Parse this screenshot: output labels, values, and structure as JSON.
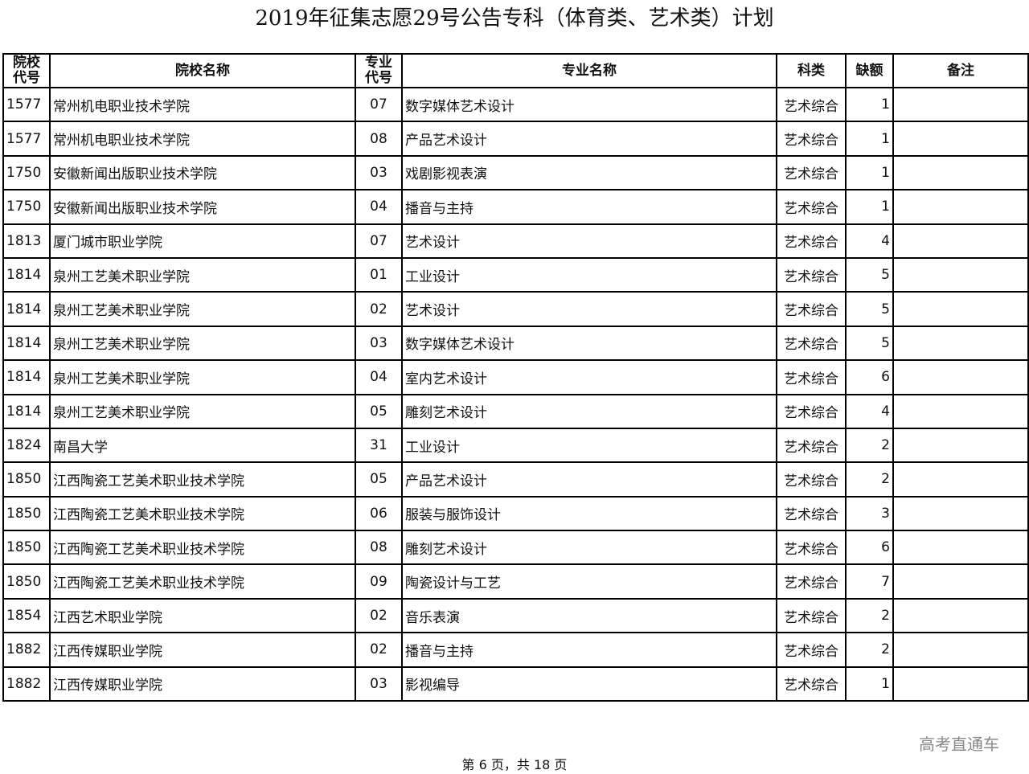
{
  "title": "2019年征集志愿29号公告专科（体育类、艺术类）计划",
  "columns": [
    "院校代号",
    "院校名称",
    "专业代号",
    "专业名称",
    "科类",
    "缺额",
    "备注"
  ],
  "columns_multiline": {
    "school_code": [
      "院校",
      "代号"
    ],
    "major_code": [
      "专业",
      "代号"
    ]
  },
  "rows": [
    [
      "1577",
      "常州机电职业技术学院",
      "07",
      "数字媒体艺术设计",
      "艺术综合",
      "1",
      ""
    ],
    [
      "1577",
      "常州机电职业技术学院",
      "08",
      "产品艺术设计",
      "艺术综合",
      "1",
      ""
    ],
    [
      "1750",
      "安徽新闻出版职业技术学院",
      "03",
      "戏剧影视表演",
      "艺术综合",
      "1",
      ""
    ],
    [
      "1750",
      "安徽新闻出版职业技术学院",
      "04",
      "播音与主持",
      "艺术综合",
      "1",
      ""
    ],
    [
      "1813",
      "厦门城市职业学院",
      "07",
      "艺术设计",
      "艺术综合",
      "4",
      ""
    ],
    [
      "1814",
      "泉州工艺美术职业学院",
      "01",
      "工业设计",
      "艺术综合",
      "5",
      ""
    ],
    [
      "1814",
      "泉州工艺美术职业学院",
      "02",
      "艺术设计",
      "艺术综合",
      "5",
      ""
    ],
    [
      "1814",
      "泉州工艺美术职业学院",
      "03",
      "数字媒体艺术设计",
      "艺术综合",
      "5",
      ""
    ],
    [
      "1814",
      "泉州工艺美术职业学院",
      "04",
      "室内艺术设计",
      "艺术综合",
      "6",
      ""
    ],
    [
      "1814",
      "泉州工艺美术职业学院",
      "05",
      "雕刻艺术设计",
      "艺术综合",
      "4",
      ""
    ],
    [
      "1824",
      "南昌大学",
      "31",
      "工业设计",
      "艺术综合",
      "2",
      ""
    ],
    [
      "1850",
      "江西陶瓷工艺美术职业技术学院",
      "05",
      "产品艺术设计",
      "艺术综合",
      "2",
      ""
    ],
    [
      "1850",
      "江西陶瓷工艺美术职业技术学院",
      "06",
      "服装与服饰设计",
      "艺术综合",
      "3",
      ""
    ],
    [
      "1850",
      "江西陶瓷工艺美术职业技术学院",
      "08",
      "雕刻艺术设计",
      "艺术综合",
      "6",
      ""
    ],
    [
      "1850",
      "江西陶瓷工艺美术职业技术学院",
      "09",
      "陶瓷设计与工艺",
      "艺术综合",
      "7",
      ""
    ],
    [
      "1854",
      "江西艺术职业学院",
      "02",
      "音乐表演",
      "艺术综合",
      "2",
      ""
    ],
    [
      "1882",
      "江西传媒职业学院",
      "02",
      "播音与主持",
      "艺术综合",
      "2",
      ""
    ],
    [
      "1882",
      "江西传媒职业学院",
      "03",
      "影视编导",
      "艺术综合",
      "1",
      ""
    ]
  ],
  "watermark": "高考直通车",
  "footer": "第 6 页，共 18 页"
}
